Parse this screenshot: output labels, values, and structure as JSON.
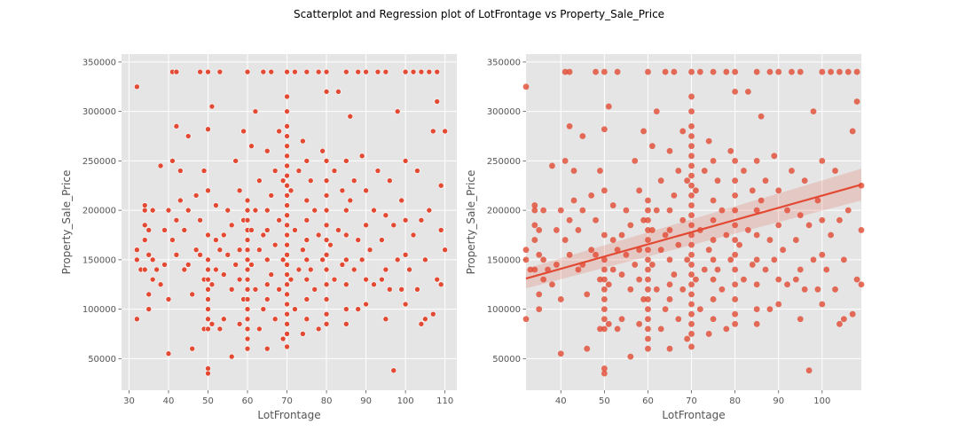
{
  "figure": {
    "suptitle": "Scatterplot and Regression plot of LotFrontage vs Property_Sale_Price"
  },
  "colors": {
    "plot_bg": "#E5E5E5",
    "grid": "#FFFFFF",
    "marker": "#E24A33",
    "marker_edge": "#FFFFFF",
    "ci_band": "#E24A33",
    "tick_text": "#555555"
  },
  "chart_data": [
    {
      "type": "scatter",
      "title": "",
      "xlabel": "LotFrontage",
      "ylabel": "Property_Sale_Price",
      "xlim": [
        28.1,
        113.0
      ],
      "ylim": [
        18000,
        358000
      ],
      "xticks": [
        30,
        40,
        50,
        60,
        70,
        80,
        90,
        100,
        110
      ],
      "yticks": [
        50000,
        100000,
        150000,
        200000,
        250000,
        300000,
        350000
      ],
      "grid": true,
      "marker_style": "white-edged circle",
      "points": [
        [
          32,
          90000
        ],
        [
          32,
          160000
        ],
        [
          32,
          150000
        ],
        [
          32,
          325000
        ],
        [
          33,
          140000
        ],
        [
          34,
          200000
        ],
        [
          34,
          205000
        ],
        [
          34,
          185000
        ],
        [
          34,
          170000
        ],
        [
          34,
          140000
        ],
        [
          35,
          180000
        ],
        [
          35,
          155000
        ],
        [
          35,
          100000
        ],
        [
          35,
          115000
        ],
        [
          36,
          130000
        ],
        [
          36,
          150000
        ],
        [
          36,
          200000
        ],
        [
          37,
          140000
        ],
        [
          38,
          125000
        ],
        [
          38,
          245000
        ],
        [
          39,
          180000
        ],
        [
          39,
          145000
        ],
        [
          40,
          55000
        ],
        [
          40,
          110000
        ],
        [
          40,
          200000
        ],
        [
          41,
          170000
        ],
        [
          41,
          340000
        ],
        [
          41,
          250000
        ],
        [
          42,
          340000
        ],
        [
          42,
          285000
        ],
        [
          42,
          190000
        ],
        [
          42,
          155000
        ],
        [
          43,
          240000
        ],
        [
          43,
          210000
        ],
        [
          44,
          140000
        ],
        [
          44,
          180000
        ],
        [
          45,
          275000
        ],
        [
          45,
          200000
        ],
        [
          45,
          145000
        ],
        [
          46,
          60000
        ],
        [
          46,
          115000
        ],
        [
          47,
          215000
        ],
        [
          47,
          160000
        ],
        [
          48,
          340000
        ],
        [
          48,
          190000
        ],
        [
          48,
          155000
        ],
        [
          49,
          80000
        ],
        [
          49,
          130000
        ],
        [
          49,
          240000
        ],
        [
          50,
          40000
        ],
        [
          50,
          35000
        ],
        [
          50,
          80000
        ],
        [
          50,
          90000
        ],
        [
          50,
          100000
        ],
        [
          50,
          110000
        ],
        [
          50,
          120000
        ],
        [
          50,
          130000
        ],
        [
          50,
          140000
        ],
        [
          50,
          150000
        ],
        [
          50,
          175000
        ],
        [
          50,
          220000
        ],
        [
          50,
          282000
        ],
        [
          50,
          340000
        ],
        [
          51,
          85000
        ],
        [
          51,
          125000
        ],
        [
          51,
          305000
        ],
        [
          52,
          140000
        ],
        [
          52,
          170000
        ],
        [
          52,
          205000
        ],
        [
          53,
          80000
        ],
        [
          53,
          160000
        ],
        [
          53,
          340000
        ],
        [
          54,
          90000
        ],
        [
          54,
          135000
        ],
        [
          54,
          175000
        ],
        [
          55,
          155000
        ],
        [
          55,
          200000
        ],
        [
          56,
          52000
        ],
        [
          56,
          120000
        ],
        [
          56,
          185000
        ],
        [
          57,
          145000
        ],
        [
          57,
          250000
        ],
        [
          58,
          85000
        ],
        [
          58,
          130000
        ],
        [
          58,
          160000
        ],
        [
          58,
          220000
        ],
        [
          59,
          110000
        ],
        [
          59,
          190000
        ],
        [
          59,
          280000
        ],
        [
          60,
          60000
        ],
        [
          60,
          70000
        ],
        [
          60,
          80000
        ],
        [
          60,
          90000
        ],
        [
          60,
          100000
        ],
        [
          60,
          110000
        ],
        [
          60,
          120000
        ],
        [
          60,
          130000
        ],
        [
          60,
          140000
        ],
        [
          60,
          150000
        ],
        [
          60,
          160000
        ],
        [
          60,
          170000
        ],
        [
          60,
          180000
        ],
        [
          60,
          190000
        ],
        [
          60,
          200000
        ],
        [
          60,
          210000
        ],
        [
          60,
          340000
        ],
        [
          61,
          180000
        ],
        [
          61,
          145000
        ],
        [
          61,
          265000
        ],
        [
          62,
          120000
        ],
        [
          62,
          200000
        ],
        [
          62,
          300000
        ],
        [
          63,
          80000
        ],
        [
          63,
          160000
        ],
        [
          63,
          230000
        ],
        [
          64,
          100000
        ],
        [
          64,
          175000
        ],
        [
          64,
          340000
        ],
        [
          65,
          60000
        ],
        [
          65,
          110000
        ],
        [
          65,
          125000
        ],
        [
          65,
          150000
        ],
        [
          65,
          180000
        ],
        [
          65,
          200000
        ],
        [
          65,
          260000
        ],
        [
          66,
          135000
        ],
        [
          66,
          215000
        ],
        [
          66,
          340000
        ],
        [
          67,
          90000
        ],
        [
          67,
          165000
        ],
        [
          67,
          240000
        ],
        [
          68,
          120000
        ],
        [
          68,
          190000
        ],
        [
          68,
          280000
        ],
        [
          69,
          70000
        ],
        [
          69,
          150000
        ],
        [
          69,
          230000
        ],
        [
          70,
          62000
        ],
        [
          70,
          75000
        ],
        [
          70,
          85000
        ],
        [
          70,
          95000
        ],
        [
          70,
          105000
        ],
        [
          70,
          115000
        ],
        [
          70,
          125000
        ],
        [
          70,
          135000
        ],
        [
          70,
          145000
        ],
        [
          70,
          155000
        ],
        [
          70,
          165000
        ],
        [
          70,
          175000
        ],
        [
          70,
          185000
        ],
        [
          70,
          195000
        ],
        [
          70,
          205000
        ],
        [
          70,
          215000
        ],
        [
          70,
          225000
        ],
        [
          70,
          235000
        ],
        [
          70,
          245000
        ],
        [
          70,
          255000
        ],
        [
          70,
          265000
        ],
        [
          70,
          275000
        ],
        [
          70,
          285000
        ],
        [
          70,
          300000
        ],
        [
          70,
          315000
        ],
        [
          70,
          340000
        ],
        [
          71,
          130000
        ],
        [
          71,
          220000
        ],
        [
          72,
          100000
        ],
        [
          72,
          180000
        ],
        [
          72,
          340000
        ],
        [
          73,
          140000
        ],
        [
          73,
          240000
        ],
        [
          74,
          75000
        ],
        [
          74,
          160000
        ],
        [
          74,
          270000
        ],
        [
          75,
          90000
        ],
        [
          75,
          110000
        ],
        [
          75,
          130000
        ],
        [
          75,
          150000
        ],
        [
          75,
          170000
        ],
        [
          75,
          190000
        ],
        [
          75,
          210000
        ],
        [
          75,
          250000
        ],
        [
          75,
          340000
        ],
        [
          76,
          140000
        ],
        [
          76,
          230000
        ],
        [
          77,
          120000
        ],
        [
          77,
          200000
        ],
        [
          78,
          80000
        ],
        [
          78,
          175000
        ],
        [
          78,
          340000
        ],
        [
          79,
          150000
        ],
        [
          79,
          260000
        ],
        [
          80,
          85000
        ],
        [
          80,
          95000
        ],
        [
          80,
          110000
        ],
        [
          80,
          125000
        ],
        [
          80,
          140000
        ],
        [
          80,
          155000
        ],
        [
          80,
          170000
        ],
        [
          80,
          185000
        ],
        [
          80,
          200000
        ],
        [
          80,
          215000
        ],
        [
          80,
          230000
        ],
        [
          80,
          250000
        ],
        [
          80,
          320000
        ],
        [
          80,
          340000
        ],
        [
          81,
          165000
        ],
        [
          82,
          130000
        ],
        [
          82,
          240000
        ],
        [
          83,
          320000
        ],
        [
          83,
          180000
        ],
        [
          84,
          145000
        ],
        [
          84,
          220000
        ],
        [
          85,
          85000
        ],
        [
          85,
          100000
        ],
        [
          85,
          125000
        ],
        [
          85,
          150000
        ],
        [
          85,
          175000
        ],
        [
          85,
          200000
        ],
        [
          85,
          250000
        ],
        [
          85,
          340000
        ],
        [
          86,
          210000
        ],
        [
          86,
          295000
        ],
        [
          87,
          140000
        ],
        [
          87,
          230000
        ],
        [
          88,
          100000
        ],
        [
          88,
          170000
        ],
        [
          88,
          340000
        ],
        [
          89,
          150000
        ],
        [
          89,
          255000
        ],
        [
          90,
          105000
        ],
        [
          90,
          130000
        ],
        [
          90,
          185000
        ],
        [
          90,
          220000
        ],
        [
          90,
          340000
        ],
        [
          91,
          160000
        ],
        [
          92,
          125000
        ],
        [
          92,
          200000
        ],
        [
          93,
          240000
        ],
        [
          93,
          340000
        ],
        [
          94,
          130000
        ],
        [
          94,
          170000
        ],
        [
          95,
          90000
        ],
        [
          95,
          140000
        ],
        [
          95,
          195000
        ],
        [
          95,
          340000
        ],
        [
          96,
          120000
        ],
        [
          96,
          230000
        ],
        [
          97,
          38000
        ],
        [
          97,
          185000
        ],
        [
          98,
          150000
        ],
        [
          98,
          300000
        ],
        [
          99,
          120000
        ],
        [
          99,
          210000
        ],
        [
          100,
          105000
        ],
        [
          100,
          155000
        ],
        [
          100,
          190000
        ],
        [
          100,
          250000
        ],
        [
          100,
          340000
        ],
        [
          101,
          140000
        ],
        [
          102,
          175000
        ],
        [
          102,
          340000
        ],
        [
          103,
          120000
        ],
        [
          103,
          240000
        ],
        [
          104,
          85000
        ],
        [
          104,
          190000
        ],
        [
          104,
          340000
        ],
        [
          105,
          150000
        ],
        [
          105,
          90000
        ],
        [
          106,
          200000
        ],
        [
          106,
          340000
        ],
        [
          107,
          95000
        ],
        [
          107,
          280000
        ],
        [
          108,
          130000
        ],
        [
          108,
          310000
        ],
        [
          108,
          340000
        ],
        [
          109,
          125000
        ],
        [
          109,
          180000
        ],
        [
          109,
          225000
        ],
        [
          110,
          280000
        ],
        [
          110,
          160000
        ]
      ]
    },
    {
      "type": "scatter",
      "title": "",
      "xlabel": "LotFrontage",
      "ylabel": "Property_Sale_Price",
      "xlim": [
        32,
        109
      ],
      "ylim": [
        18000,
        358000
      ],
      "xticks": [
        40,
        50,
        60,
        70,
        80,
        90,
        100
      ],
      "yticks": [
        50000,
        100000,
        150000,
        200000,
        250000,
        300000,
        350000
      ],
      "grid": true,
      "marker_style": "semi-transparent circle",
      "regression": {
        "x": [
          32,
          109
        ],
        "y": [
          131000,
          226000
        ],
        "ci_low": [
          121000,
          210000
        ],
        "ci_high": [
          141000,
          242000
        ]
      }
    }
  ]
}
